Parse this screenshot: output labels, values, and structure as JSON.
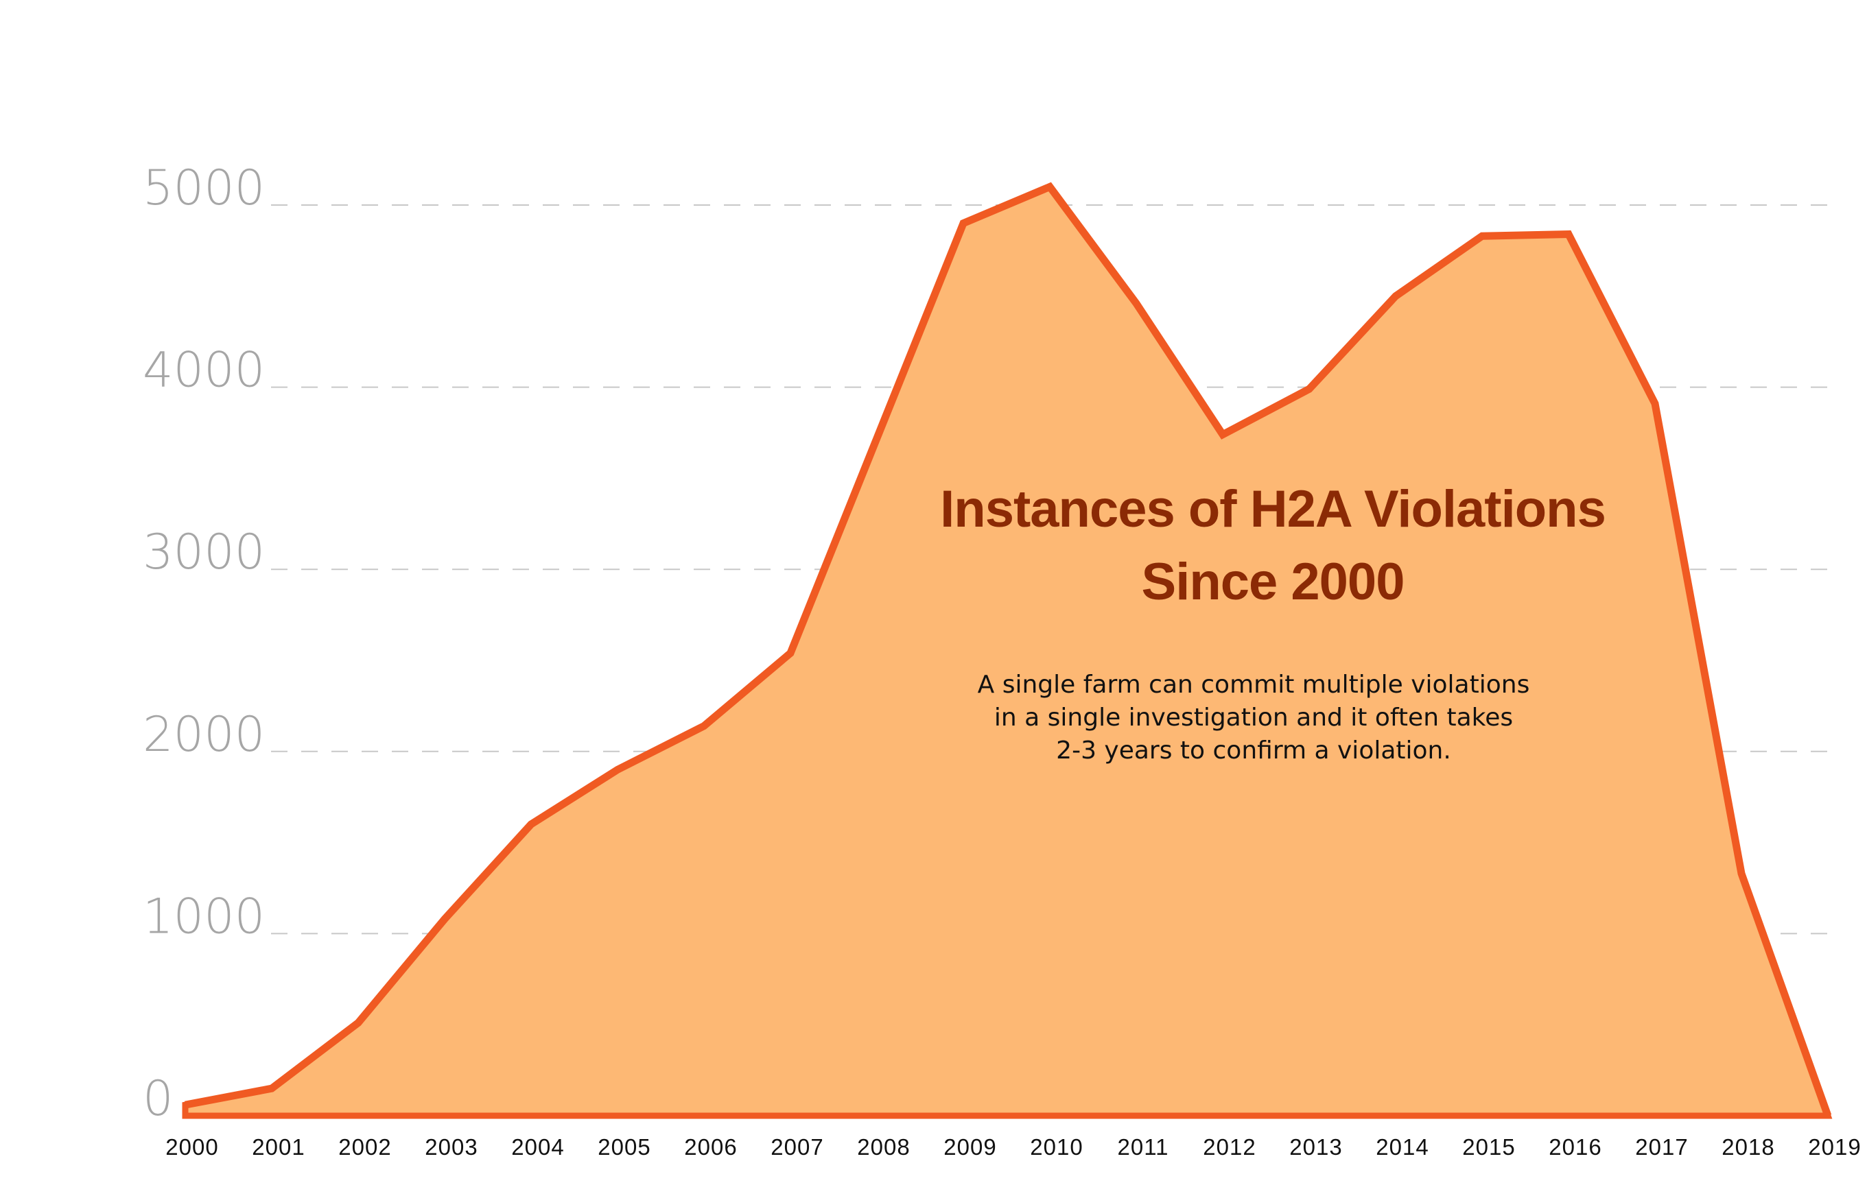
{
  "chart_data": {
    "type": "area",
    "title": "Instances of H2A Violations Since 2000",
    "title_lines": [
      "Instances of H2A Violations",
      "Since 2000"
    ],
    "subtitle_lines": [
      "A single farm can commit multiple violations",
      "in a single investigation and it often takes",
      "2-3 years to confirm a violation."
    ],
    "x": [
      "2000",
      "2001",
      "2002",
      "2003",
      "2004",
      "2005",
      "2006",
      "2007",
      "2008",
      "2009",
      "2010",
      "2011",
      "2012",
      "2013",
      "2014",
      "2015",
      "2016",
      "2017",
      "2018",
      "2019"
    ],
    "values": [
      60,
      150,
      510,
      1080,
      1600,
      1900,
      2140,
      2540,
      3720,
      4900,
      5100,
      4460,
      3740,
      3990,
      4500,
      4830,
      4840,
      3910,
      1330,
      0
    ],
    "yticks": [
      0,
      1000,
      2000,
      3000,
      4000,
      5000
    ],
    "ylim": [
      0,
      5000
    ],
    "grid": true,
    "legend": "none",
    "colors": {
      "fill": "#fdb874",
      "line": "#f05a22",
      "title": "#8b2a05",
      "ytick": "#a6a6a6",
      "xtick": "#111111",
      "grid": "#c8c8c8"
    }
  }
}
